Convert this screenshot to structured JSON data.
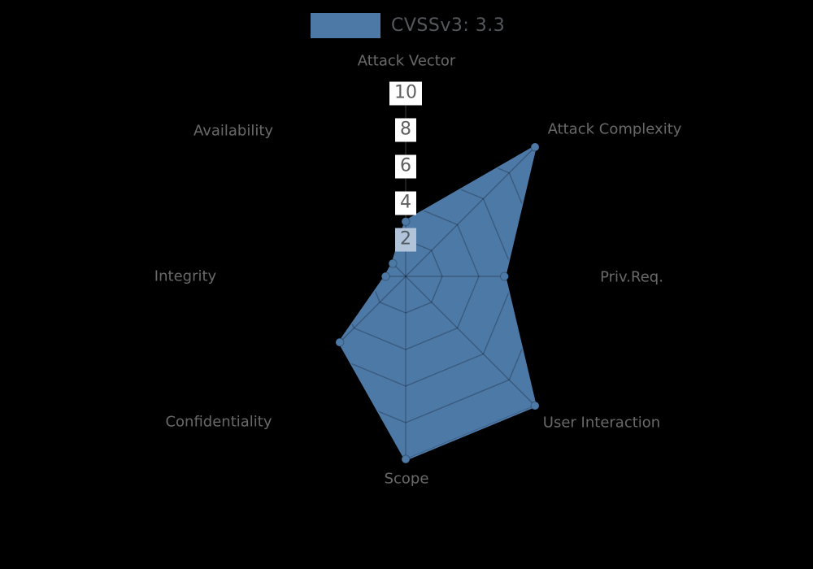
{
  "legend": {
    "label": "CVSSv3: 3.3",
    "swatch_color": "#4d79a7"
  },
  "chart_data": {
    "type": "radar",
    "title": "CVSSv3: 3.3",
    "axes": [
      "Attack Vector",
      "Attack Complexity",
      "Priv.Req.",
      "User Interaction",
      "Scope",
      "Confidentiality",
      "Integrity",
      "Availability"
    ],
    "series": [
      {
        "name": "CVSSv3: 3.3",
        "values": [
          3.0,
          10.0,
          5.4,
          10.0,
          10.0,
          5.1,
          1.1,
          1.0
        ]
      }
    ],
    "radial_ticks": [
      2,
      4,
      6,
      8,
      10
    ],
    "radial_range": [
      0,
      10
    ],
    "legend_position": "top",
    "grid": "octagonal-web-visible-only-over-fill",
    "colors": {
      "background": "#000000",
      "fill": "#4d79a7",
      "stroke": "#4d79a7",
      "web_line": "rgba(0,0,0,0.25)",
      "axis_line": "#3c3c3c",
      "axis_label": "#696969",
      "tick_text": "#5f5f5f",
      "tick_box": "#ffffff",
      "tick_box_overlap": "#b2c4da"
    }
  }
}
